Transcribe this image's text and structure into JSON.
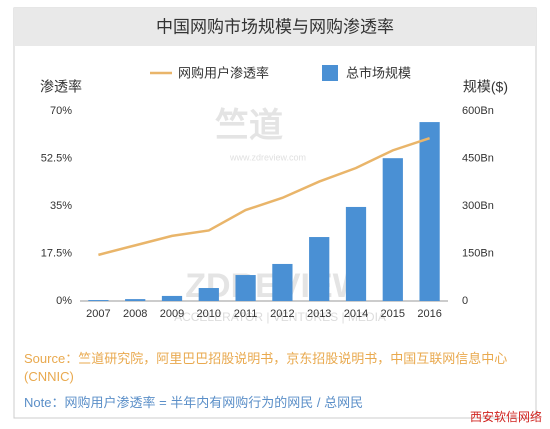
{
  "chart_data": {
    "type": "bar",
    "title": "中国网购市场规模与网购渗透率",
    "y_label": "渗透率",
    "y2_label": "规模($)",
    "categories": [
      "2007",
      "2008",
      "2009",
      "2010",
      "2011",
      "2012",
      "2013",
      "2014",
      "2015",
      "2016"
    ],
    "series": [
      {
        "name": "网购用户渗透率",
        "type": "line",
        "axis": "y",
        "color": "#e9b56a",
        "values": [
          17,
          20.5,
          24,
          26,
          33.5,
          38,
          44,
          49,
          55.5,
          60
        ]
      },
      {
        "name": "总市场规模",
        "type": "bar",
        "axis": "y2",
        "color": "#4a90d4",
        "values": [
          3,
          6,
          16,
          41,
          82,
          117,
          202,
          297,
          451,
          565
        ]
      }
    ],
    "ylim": [
      0,
      70
    ],
    "yticks": [
      {
        "value": 0,
        "label": "0%"
      },
      {
        "value": 17.5,
        "label": "17.5%"
      },
      {
        "value": 35,
        "label": "35%"
      },
      {
        "value": 52.5,
        "label": "52.5%"
      },
      {
        "value": 70,
        "label": "70%"
      }
    ],
    "y2lim": [
      0,
      600
    ],
    "y2ticks": [
      0,
      {
        "value": 150,
        "label": "150Bn"
      },
      {
        "value": 300,
        "label": "300Bn"
      },
      {
        "value": 450,
        "label": "450Bn"
      },
      {
        "value": 600,
        "label": "600Bn"
      }
    ],
    "watermark": [
      "竺道",
      "www.zdreview.com",
      "ZDREVIEW",
      "ACCELERATOR | VENTURES | MEDIA"
    ],
    "source": "Source：竺道研究院，阿里巴巴招股说明书，京东招股说明书，中国互联网信息中心(CNNIC)",
    "note": "Note：网购用户渗透率 = 半年内有网购行为的网民 / 总网民",
    "credit": "西安软信网络"
  }
}
